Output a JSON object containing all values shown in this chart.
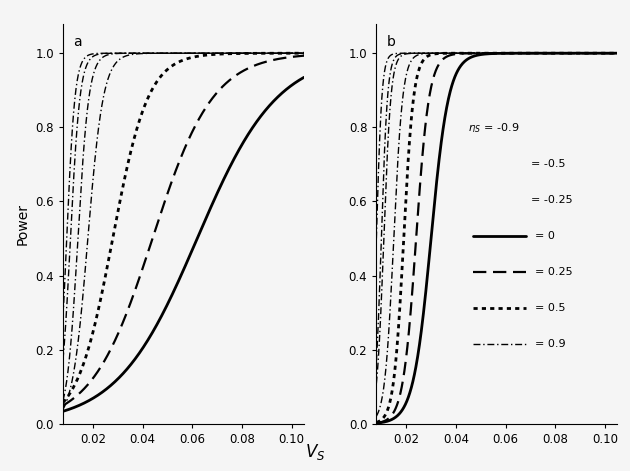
{
  "background_color": "#f5f5f5",
  "line_color": "#000000",
  "ylabel": "Power",
  "xticks": [
    0.02,
    0.04,
    0.06,
    0.08,
    0.1
  ],
  "yticks": [
    0.0,
    0.2,
    0.4,
    0.6,
    0.8,
    1.0
  ],
  "panel_labels": [
    "a",
    "b"
  ],
  "panel_a": {
    "curves": [
      {
        "mid": 0.0095,
        "steep": 600,
        "ls": "dashdot",
        "lw": 1.0,
        "label": "-0.9"
      },
      {
        "mid": 0.014,
        "steep": 450,
        "ls": "dashdot",
        "lw": 1.0,
        "label": "-0.5"
      },
      {
        "mid": 0.018,
        "steep": 320,
        "ls": "dashdot",
        "lw": 1.0,
        "label": "-0.25"
      },
      {
        "mid": 0.062,
        "steep": 62,
        "ls": "solid",
        "lw": 2.0,
        "label": "0"
      },
      {
        "mid": 0.044,
        "steep": 82,
        "ls": "dashed",
        "lw": 1.6,
        "label": "0.25"
      },
      {
        "mid": 0.028,
        "steep": 140,
        "ls": "dotted",
        "lw": 2.0,
        "label": "0.5"
      },
      {
        "mid": 0.011,
        "steep": 520,
        "ls": "dashdot",
        "lw": 1.0,
        "label": "0.9"
      }
    ]
  },
  "panel_b": {
    "curves": [
      {
        "mid": 0.008,
        "steep": 900,
        "ls": "dashdot",
        "lw": 1.0,
        "label": "-0.9"
      },
      {
        "mid": 0.011,
        "steep": 700,
        "ls": "dashdot",
        "lw": 1.0,
        "label": "-0.5"
      },
      {
        "mid": 0.015,
        "steep": 550,
        "ls": "dashdot",
        "lw": 1.0,
        "label": "-0.25"
      },
      {
        "mid": 0.03,
        "steep": 280,
        "ls": "solid",
        "lw": 2.0,
        "label": "0"
      },
      {
        "mid": 0.024,
        "steep": 380,
        "ls": "dashed",
        "lw": 1.6,
        "label": "0.25"
      },
      {
        "mid": 0.019,
        "steep": 500,
        "ls": "dotted",
        "lw": 2.0,
        "label": "0.5"
      },
      {
        "mid": 0.01,
        "steep": 800,
        "ls": "dashdot",
        "lw": 1.0,
        "label": "0.9"
      }
    ]
  }
}
